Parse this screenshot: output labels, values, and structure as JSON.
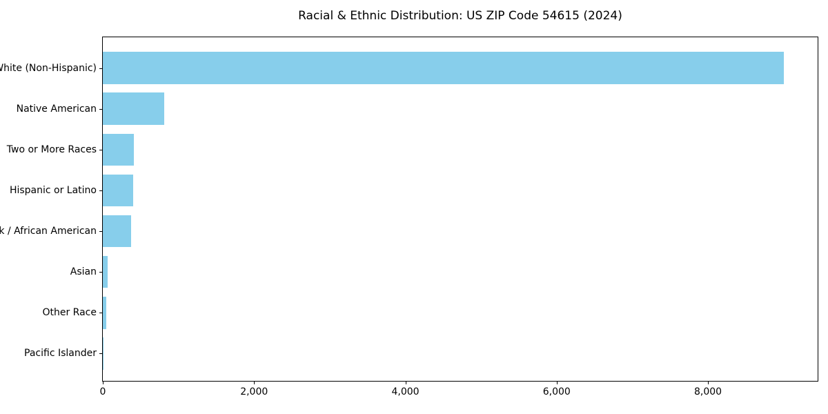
{
  "chart_data": {
    "type": "bar",
    "orientation": "horizontal",
    "title": "Racial & Ethnic Distribution: US ZIP Code 54615 (2024)",
    "categories": [
      "White (Non-Hispanic)",
      "Native American",
      "Two or More Races",
      "Hispanic or Latino",
      "Black / African American",
      "Asian",
      "Other Race",
      "Pacific Islander"
    ],
    "values": [
      9000,
      810,
      410,
      400,
      370,
      60,
      50,
      5
    ],
    "xlabel": "",
    "ylabel": "",
    "xlim": [
      0,
      9450
    ],
    "xticks": [
      0,
      2000,
      4000,
      6000,
      8000
    ],
    "xtick_labels": [
      "0",
      "2,000",
      "4,000",
      "6,000",
      "8,000"
    ],
    "bar_color": "#87CEEB",
    "spine_color": "#000000",
    "grid": false,
    "legend_position": "none"
  }
}
